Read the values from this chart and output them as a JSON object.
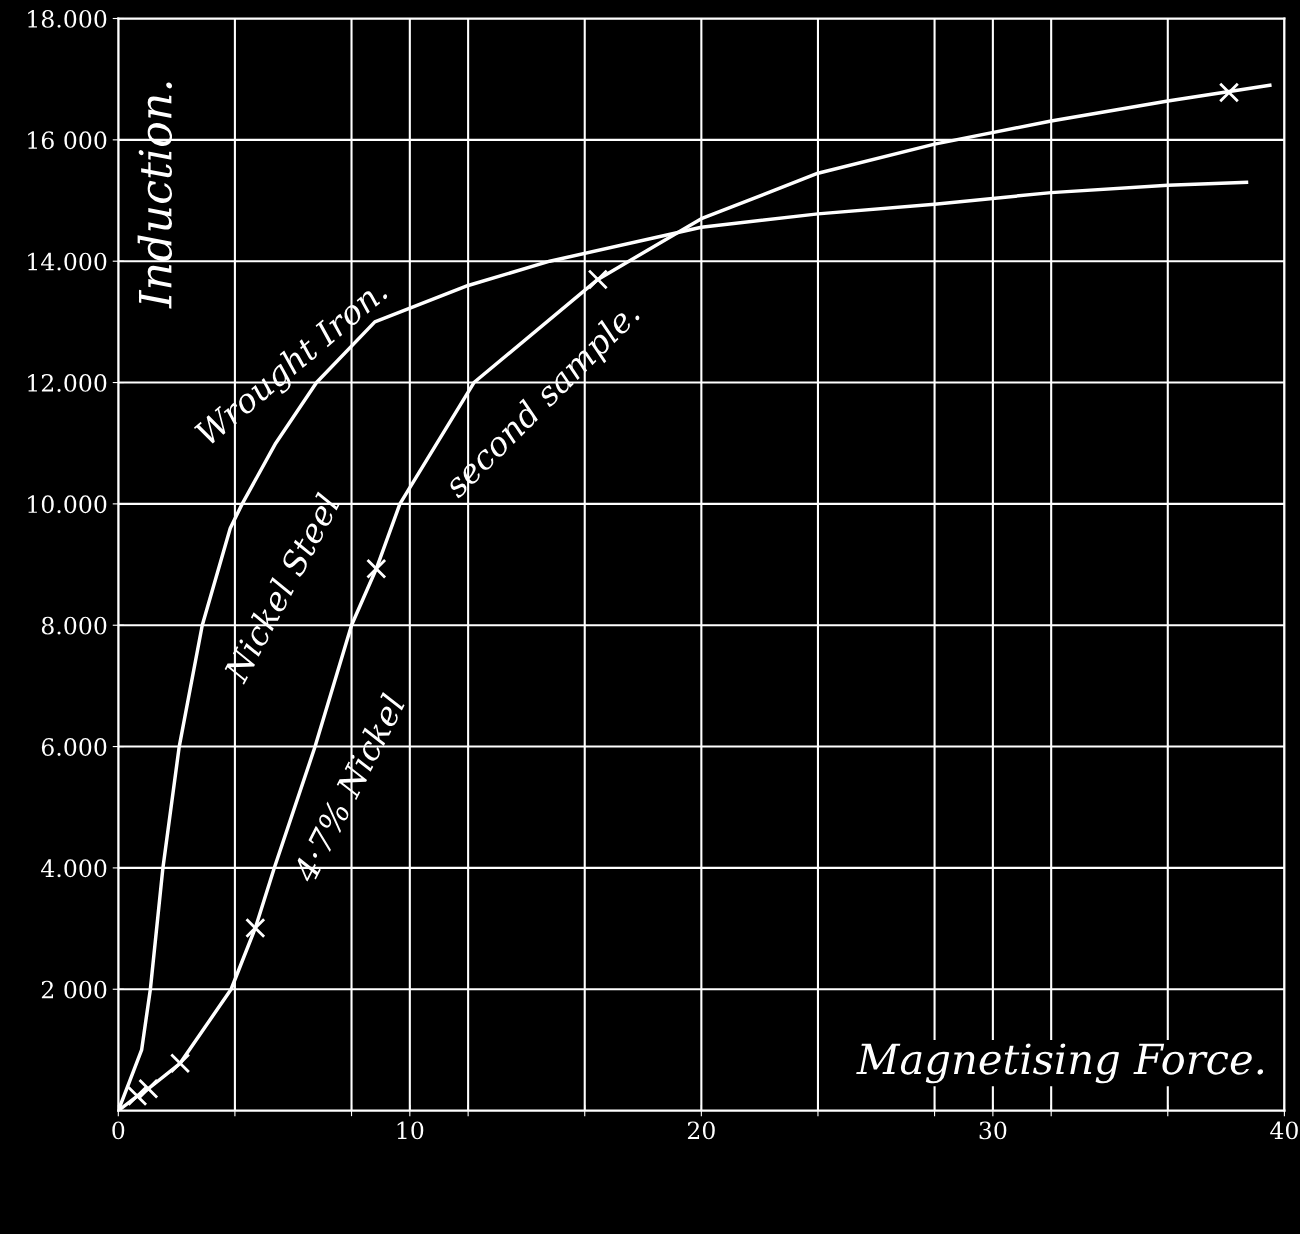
{
  "chart_data": {
    "type": "line",
    "xlabel": "Magnetising Force.",
    "ylabel": "Induction.",
    "xlim": [
      0,
      40
    ],
    "ylim": [
      0,
      18000
    ],
    "xticks": [
      0,
      {
        "value": 4,
        "label": null
      },
      {
        "value": 8,
        "label": null
      },
      10,
      {
        "value": 12,
        "label": null
      },
      {
        "value": 16,
        "label": null
      },
      20,
      {
        "value": 24,
        "label": null
      },
      {
        "value": 28,
        "label": null
      },
      30,
      {
        "value": 32,
        "label": null
      },
      {
        "value": 36,
        "label": null
      },
      40
    ],
    "yticks": [
      {
        "value": 2000,
        "label": "2 000"
      },
      {
        "value": 4000,
        "label": "4.000"
      },
      {
        "value": 6000,
        "label": "6.000"
      },
      {
        "value": 8000,
        "label": "8.000"
      },
      {
        "value": 10000,
        "label": "10.000"
      },
      {
        "value": 12000,
        "label": "12.000"
      },
      {
        "value": 14000,
        "label": "14.000"
      },
      {
        "value": 16000,
        "label": "16 000"
      },
      {
        "value": 18000,
        "label": "18.000"
      }
    ],
    "grid": true,
    "line_style": "solid",
    "series": [
      {
        "name": "Wrought Iron.",
        "color": "#ffffff",
        "marker": "none",
        "x": [
          0,
          0.4,
          0.8,
          1.1,
          1.53,
          2.09,
          2.88,
          3.84,
          4.25,
          5.4,
          6.8,
          8.8,
          12,
          14.8,
          20,
          24,
          28,
          32,
          36,
          38.7
        ],
        "values": [
          0,
          500,
          1000,
          2000,
          4000,
          6000,
          8000,
          9600,
          10000,
          11000,
          12000,
          13000,
          13600,
          14000,
          14560,
          14780,
          14940,
          15130,
          15250,
          15300
        ]
      },
      {
        "name": "Nickel Steel",
        "color": "#ffffff",
        "marker": "none",
        "x": [
          0,
          0.65,
          1.03,
          2.12,
          3.87,
          4.7,
          5.35,
          6.75,
          8.0,
          8.85,
          9.66,
          12.2,
          16.45,
          20,
          24,
          28,
          32,
          36,
          39.5
        ],
        "values": [
          0,
          240,
          360,
          780,
          2000,
          3010,
          4000,
          6000,
          8000,
          8930,
          10000,
          12000,
          13700,
          14700,
          15450,
          15930,
          16310,
          16640,
          16900
        ]
      },
      {
        "type": "scatter",
        "color": "#ffffff",
        "marker": "cross",
        "x": [
          0.65,
          1.03,
          2.12,
          4.7,
          8.85,
          16.45,
          38.1
        ],
        "values": [
          240,
          360,
          780,
          3010,
          8930,
          13700,
          16780
        ]
      }
    ],
    "annotations": [
      "4·7% Nickel",
      "second sample."
    ]
  }
}
